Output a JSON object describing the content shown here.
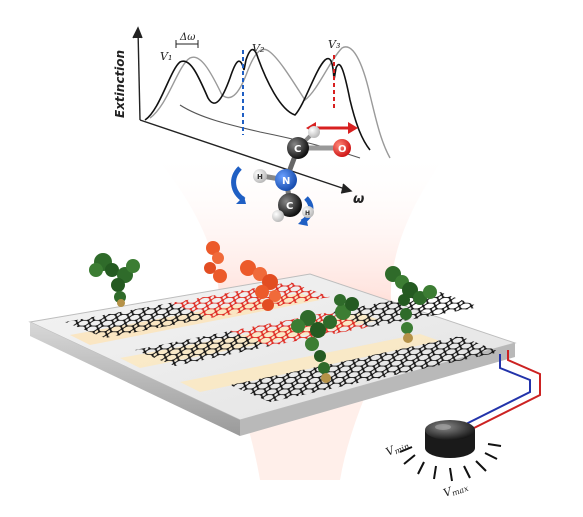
{
  "spectrum": {
    "ylabel": "Extinction",
    "xlabel": "ω",
    "delta_label": "Δω",
    "peaks": [
      "V₁",
      "V₂",
      "V₃"
    ]
  },
  "molecule": {
    "carbon": "C",
    "nitrogen": "N",
    "oxygen": "O",
    "hydrogen": "H"
  },
  "knob": {
    "min_label": "V",
    "min_sub": "min",
    "max_label": "V",
    "max_sub": "max"
  },
  "colors": {
    "graphene_black": "#1a1a1a",
    "graphene_red": "#e23a2a",
    "protein_green": "#2f6b2a",
    "protein_orange": "#ec5a2a",
    "wire_red": "#cc2222",
    "wire_blue": "#2233aa",
    "nitrogen_blue": "#1f5fc4",
    "oxygen_red": "#e02020"
  }
}
